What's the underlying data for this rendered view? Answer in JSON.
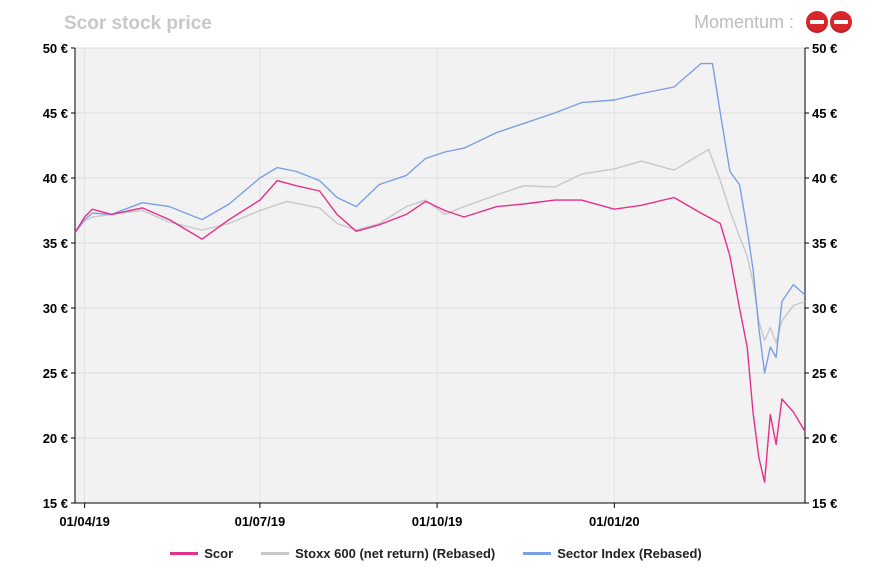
{
  "header": {
    "title": "Scor stock price",
    "momentum_label": "Momentum :"
  },
  "icons": {
    "momentum": [
      "no-entry-icon",
      "no-entry-icon"
    ]
  },
  "colors": {
    "Scor": "#e4308a",
    "Stoxx": "#c8c8c8",
    "Sector": "#7b9fe6",
    "plot_bg": "#f2f2f2"
  },
  "chart_data": {
    "type": "line",
    "title": "Scor stock price",
    "xlabel": "",
    "ylabel": "",
    "x_ticks": [
      "01/04/19",
      "01/07/19",
      "01/10/19",
      "01/01/20"
    ],
    "x_range": [
      "2019-03-27",
      "2020-04-09"
    ],
    "y_ticks": [
      "15 €",
      "20 €",
      "25 €",
      "30 €",
      "35 €",
      "40 €",
      "45 €",
      "50 €"
    ],
    "ylim": [
      15,
      50
    ],
    "grid": true,
    "legend_position": "bottom",
    "series": [
      {
        "name": "Scor",
        "color": "#e4308a",
        "points": [
          [
            "2019-03-27",
            35.8
          ],
          [
            "2019-04-01",
            37.0
          ],
          [
            "2019-04-05",
            37.6
          ],
          [
            "2019-04-15",
            37.2
          ],
          [
            "2019-05-01",
            37.7
          ],
          [
            "2019-05-15",
            36.8
          ],
          [
            "2019-06-01",
            35.3
          ],
          [
            "2019-06-15",
            36.8
          ],
          [
            "2019-07-01",
            38.3
          ],
          [
            "2019-07-10",
            39.8
          ],
          [
            "2019-07-20",
            39.4
          ],
          [
            "2019-08-01",
            39.0
          ],
          [
            "2019-08-10",
            37.2
          ],
          [
            "2019-08-20",
            35.9
          ],
          [
            "2019-09-01",
            36.4
          ],
          [
            "2019-09-15",
            37.2
          ],
          [
            "2019-09-25",
            38.2
          ],
          [
            "2019-10-05",
            37.5
          ],
          [
            "2019-10-15",
            37.0
          ],
          [
            "2019-11-01",
            37.8
          ],
          [
            "2019-11-15",
            38.0
          ],
          [
            "2019-12-01",
            38.3
          ],
          [
            "2019-12-15",
            38.3
          ],
          [
            "2020-01-01",
            37.6
          ],
          [
            "2020-01-15",
            37.9
          ],
          [
            "2020-02-01",
            38.5
          ],
          [
            "2020-02-15",
            37.3
          ],
          [
            "2020-02-25",
            36.5
          ],
          [
            "2020-03-01",
            34.0
          ],
          [
            "2020-03-06",
            30.0
          ],
          [
            "2020-03-10",
            27.0
          ],
          [
            "2020-03-13",
            22.0
          ],
          [
            "2020-03-16",
            18.5
          ],
          [
            "2020-03-19",
            16.6
          ],
          [
            "2020-03-22",
            21.8
          ],
          [
            "2020-03-25",
            19.5
          ],
          [
            "2020-03-28",
            23.0
          ],
          [
            "2020-04-03",
            22.0
          ],
          [
            "2020-04-09",
            20.5
          ]
        ]
      },
      {
        "name": "Stoxx 600 (net return) (Rebased)",
        "color": "#c8c8c8",
        "points": [
          [
            "2019-03-27",
            35.8
          ],
          [
            "2019-04-01",
            36.7
          ],
          [
            "2019-04-05",
            37.0
          ],
          [
            "2019-04-15",
            37.2
          ],
          [
            "2019-05-01",
            37.5
          ],
          [
            "2019-05-15",
            36.6
          ],
          [
            "2019-06-01",
            36.0
          ],
          [
            "2019-06-15",
            36.5
          ],
          [
            "2019-07-01",
            37.5
          ],
          [
            "2019-07-15",
            38.2
          ],
          [
            "2019-08-01",
            37.7
          ],
          [
            "2019-08-10",
            36.5
          ],
          [
            "2019-08-20",
            36.0
          ],
          [
            "2019-09-01",
            36.5
          ],
          [
            "2019-09-15",
            37.8
          ],
          [
            "2019-09-25",
            38.3
          ],
          [
            "2019-10-05",
            37.2
          ],
          [
            "2019-10-15",
            37.8
          ],
          [
            "2019-11-01",
            38.7
          ],
          [
            "2019-11-15",
            39.4
          ],
          [
            "2019-12-01",
            39.3
          ],
          [
            "2019-12-15",
            40.3
          ],
          [
            "2020-01-01",
            40.7
          ],
          [
            "2020-01-15",
            41.3
          ],
          [
            "2020-02-01",
            40.6
          ],
          [
            "2020-02-19",
            42.2
          ],
          [
            "2020-02-25",
            39.8
          ],
          [
            "2020-03-01",
            37.5
          ],
          [
            "2020-03-06",
            35.5
          ],
          [
            "2020-03-10",
            34.0
          ],
          [
            "2020-03-13",
            32.0
          ],
          [
            "2020-03-16",
            29.0
          ],
          [
            "2020-03-19",
            27.5
          ],
          [
            "2020-03-22",
            28.5
          ],
          [
            "2020-03-25",
            27.3
          ],
          [
            "2020-03-28",
            29.0
          ],
          [
            "2020-04-03",
            30.2
          ],
          [
            "2020-04-09",
            30.5
          ]
        ]
      },
      {
        "name": "Sector Index (Rebased)",
        "color": "#7b9fe6",
        "points": [
          [
            "2019-03-27",
            35.8
          ],
          [
            "2019-04-01",
            36.8
          ],
          [
            "2019-04-05",
            37.3
          ],
          [
            "2019-04-15",
            37.2
          ],
          [
            "2019-05-01",
            38.1
          ],
          [
            "2019-05-15",
            37.8
          ],
          [
            "2019-06-01",
            36.8
          ],
          [
            "2019-06-15",
            38.0
          ],
          [
            "2019-07-01",
            40.0
          ],
          [
            "2019-07-10",
            40.8
          ],
          [
            "2019-07-20",
            40.5
          ],
          [
            "2019-08-01",
            39.8
          ],
          [
            "2019-08-10",
            38.5
          ],
          [
            "2019-08-20",
            37.8
          ],
          [
            "2019-09-01",
            39.5
          ],
          [
            "2019-09-15",
            40.2
          ],
          [
            "2019-09-25",
            41.5
          ],
          [
            "2019-10-05",
            42.0
          ],
          [
            "2019-10-15",
            42.3
          ],
          [
            "2019-11-01",
            43.5
          ],
          [
            "2019-11-15",
            44.2
          ],
          [
            "2019-12-01",
            45.0
          ],
          [
            "2019-12-15",
            45.8
          ],
          [
            "2020-01-01",
            46.0
          ],
          [
            "2020-01-15",
            46.5
          ],
          [
            "2020-02-01",
            47.0
          ],
          [
            "2020-02-15",
            48.8
          ],
          [
            "2020-02-21",
            48.8
          ],
          [
            "2020-02-25",
            45.0
          ],
          [
            "2020-03-01",
            40.5
          ],
          [
            "2020-03-06",
            39.5
          ],
          [
            "2020-03-10",
            36.0
          ],
          [
            "2020-03-13",
            33.0
          ],
          [
            "2020-03-16",
            28.5
          ],
          [
            "2020-03-19",
            25.0
          ],
          [
            "2020-03-22",
            27.0
          ],
          [
            "2020-03-25",
            26.2
          ],
          [
            "2020-03-28",
            30.5
          ],
          [
            "2020-04-03",
            31.8
          ],
          [
            "2020-04-09",
            31.0
          ]
        ]
      }
    ]
  }
}
